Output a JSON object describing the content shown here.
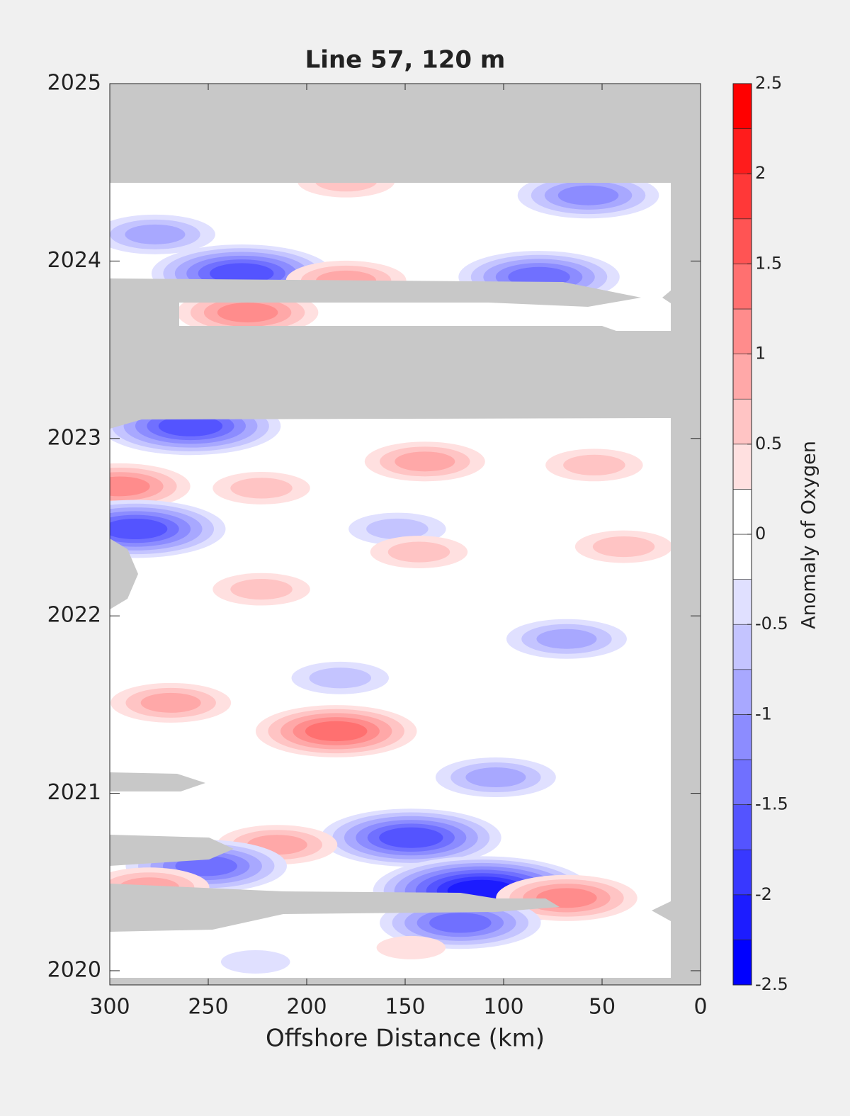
{
  "chart_data": {
    "type": "contour",
    "title": "Line 57, 120 m",
    "x_label": "Offshore Distance (km)",
    "xlim": [
      300,
      0
    ],
    "xticks": [
      300,
      250,
      200,
      150,
      100,
      50,
      0
    ],
    "ylim": [
      2019.92,
      2025
    ],
    "yticks": [
      2020,
      2021,
      2022,
      2023,
      2024,
      2025
    ],
    "colorbar": {
      "label": "Anomaly of Oxygen",
      "levels": [
        -2.5,
        -2.25,
        -2,
        -1.75,
        -1.5,
        -1.25,
        -1,
        -0.75,
        -0.5,
        -0.25,
        0,
        0.25,
        0.5,
        0.75,
        1,
        1.25,
        1.5,
        1.75,
        2,
        2.25,
        2.5
      ],
      "colors": [
        "#0000ff",
        "#1c1cff",
        "#3838ff",
        "#5454ff",
        "#7070ff",
        "#8c8cff",
        "#a8a8ff",
        "#c4c4ff",
        "#e0e0ff",
        "#ffffff",
        "#ffffff",
        "#ffe0e0",
        "#ffc4c4",
        "#ffa8a8",
        "#ff8c8c",
        "#ff7070",
        "#ff5454",
        "#ff3838",
        "#ff1c1c",
        "#ff0000"
      ],
      "ticks": [
        -2.5,
        -2,
        -1.5,
        -1,
        -0.5,
        0,
        0.5,
        1,
        1.5,
        2,
        2.5
      ]
    },
    "features": {
      "x": [
        180,
        57,
        277,
        233,
        180,
        82,
        230,
        259,
        140,
        54,
        295,
        223,
        287,
        154,
        143,
        39,
        223,
        68,
        183,
        269,
        185,
        104,
        147,
        215,
        251,
        111,
        68,
        280,
        122,
        226,
        147
      ],
      "y": [
        2024.45,
        2024.37,
        2024.15,
        2023.93,
        2023.89,
        2023.91,
        2023.71,
        2023.07,
        2022.87,
        2022.85,
        2022.73,
        2022.72,
        2022.49,
        2022.49,
        2022.36,
        2022.39,
        2022.15,
        2021.87,
        2021.65,
        2021.51,
        2021.35,
        2021.09,
        2020.75,
        2020.71,
        2020.59,
        2020.45,
        2020.41,
        2020.47,
        2020.27,
        2020.05,
        2020.13
      ],
      "values": [
        0.75,
        -1.25,
        -1,
        -1.75,
        1,
        -1.5,
        1.25,
        -1.75,
        1,
        0.75,
        1.25,
        0.75,
        -1.75,
        -0.75,
        0.75,
        0.75,
        0.75,
        -1,
        -0.75,
        1,
        1.5,
        -1,
        -1.75,
        1,
        -1.5,
        -2.25,
        1.25,
        1,
        -1.5,
        -0.5,
        0.5
      ]
    }
  }
}
